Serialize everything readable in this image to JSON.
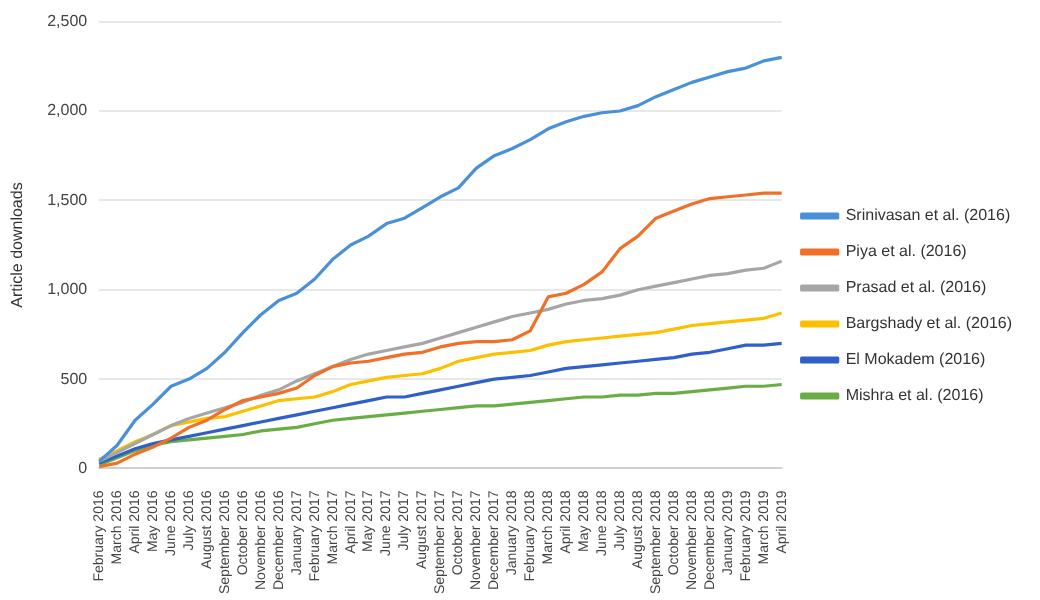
{
  "chart_data": {
    "type": "line",
    "ylabel": "Article downloads",
    "categories": [
      "February 2016",
      "March 2016",
      "April 2016",
      "May 2016",
      "June 2016",
      "July 2016",
      "August 2016",
      "September 2016",
      "October 2016",
      "November 2016",
      "December 2016",
      "January 2017",
      "February 2017",
      "March 2017",
      "April 2017",
      "May 2017",
      "June 2017",
      "July 2017",
      "August 2017",
      "September 2017",
      "October 2017",
      "November 2017",
      "December 2017",
      "January 2018",
      "February 2018",
      "March 2018",
      "April 2018",
      "May 2018",
      "June 2018",
      "July 2018",
      "August 2018",
      "September 2018",
      "October 2018",
      "November 2018",
      "December 2018",
      "January 2019",
      "February 2019",
      "March 2019",
      "April 2019"
    ],
    "series": [
      {
        "name": "Srinivasan et al. (2016)",
        "color": "#4a90d9",
        "values": [
          40,
          130,
          270,
          360,
          460,
          500,
          560,
          650,
          760,
          860,
          940,
          980,
          1060,
          1170,
          1250,
          1300,
          1370,
          1400,
          1460,
          1520,
          1570,
          1680,
          1750,
          1790,
          1840,
          1900,
          1940,
          1970,
          1990,
          2000,
          2030,
          2080,
          2120,
          2160,
          2190,
          2220,
          2240,
          2280,
          2300
        ]
      },
      {
        "name": "Piya et al. (2016)",
        "color": "#f07027",
        "values": [
          10,
          30,
          80,
          120,
          170,
          230,
          270,
          330,
          380,
          400,
          420,
          450,
          520,
          570,
          590,
          600,
          620,
          640,
          650,
          680,
          700,
          710,
          710,
          720,
          770,
          960,
          980,
          1030,
          1100,
          1230,
          1300,
          1400,
          1440,
          1480,
          1510,
          1520,
          1530,
          1540,
          1540
        ]
      },
      {
        "name": "Prasad et al. (2016)",
        "color": "#a6a6a6",
        "values": [
          40,
          90,
          140,
          190,
          240,
          280,
          310,
          340,
          370,
          410,
          440,
          490,
          530,
          570,
          610,
          640,
          660,
          680,
          700,
          730,
          760,
          790,
          820,
          850,
          870,
          890,
          920,
          940,
          950,
          970,
          1000,
          1020,
          1040,
          1060,
          1080,
          1090,
          1110,
          1120,
          1160
        ]
      },
      {
        "name": "Bargshady et al. (2016)",
        "color": "#fcc000",
        "values": [
          50,
          100,
          150,
          190,
          240,
          260,
          280,
          290,
          320,
          350,
          380,
          390,
          400,
          430,
          470,
          490,
          510,
          520,
          530,
          560,
          600,
          620,
          640,
          650,
          660,
          690,
          710,
          720,
          730,
          740,
          750,
          760,
          780,
          800,
          810,
          820,
          830,
          840,
          870
        ]
      },
      {
        "name": "El Mokadem (2016)",
        "color": "#2f5fc8",
        "values": [
          30,
          70,
          110,
          140,
          160,
          180,
          200,
          220,
          240,
          260,
          280,
          300,
          320,
          340,
          360,
          380,
          400,
          400,
          420,
          440,
          460,
          480,
          500,
          510,
          520,
          540,
          560,
          570,
          580,
          590,
          600,
          610,
          620,
          640,
          650,
          670,
          690,
          690,
          700
        ]
      },
      {
        "name": "Mishra et al. (2016)",
        "color": "#6aad45",
        "values": [
          20,
          60,
          100,
          130,
          150,
          160,
          170,
          180,
          190,
          210,
          220,
          230,
          250,
          270,
          280,
          290,
          300,
          310,
          320,
          330,
          340,
          350,
          350,
          360,
          370,
          380,
          390,
          400,
          400,
          410,
          410,
          420,
          420,
          430,
          440,
          450,
          460,
          460,
          470
        ]
      }
    ],
    "ylim": [
      0,
      2500
    ],
    "yticks": [
      0,
      {
        "value": 500,
        "label": "500"
      },
      {
        "value": 1000,
        "label": "1,000"
      },
      {
        "value": 1500,
        "label": "1,500"
      },
      {
        "value": 2000,
        "label": "2,000"
      },
      {
        "value": 2500,
        "label": "2,500"
      }
    ],
    "grid": "y",
    "legend": "right",
    "marker": "none",
    "line_style": "solid"
  }
}
